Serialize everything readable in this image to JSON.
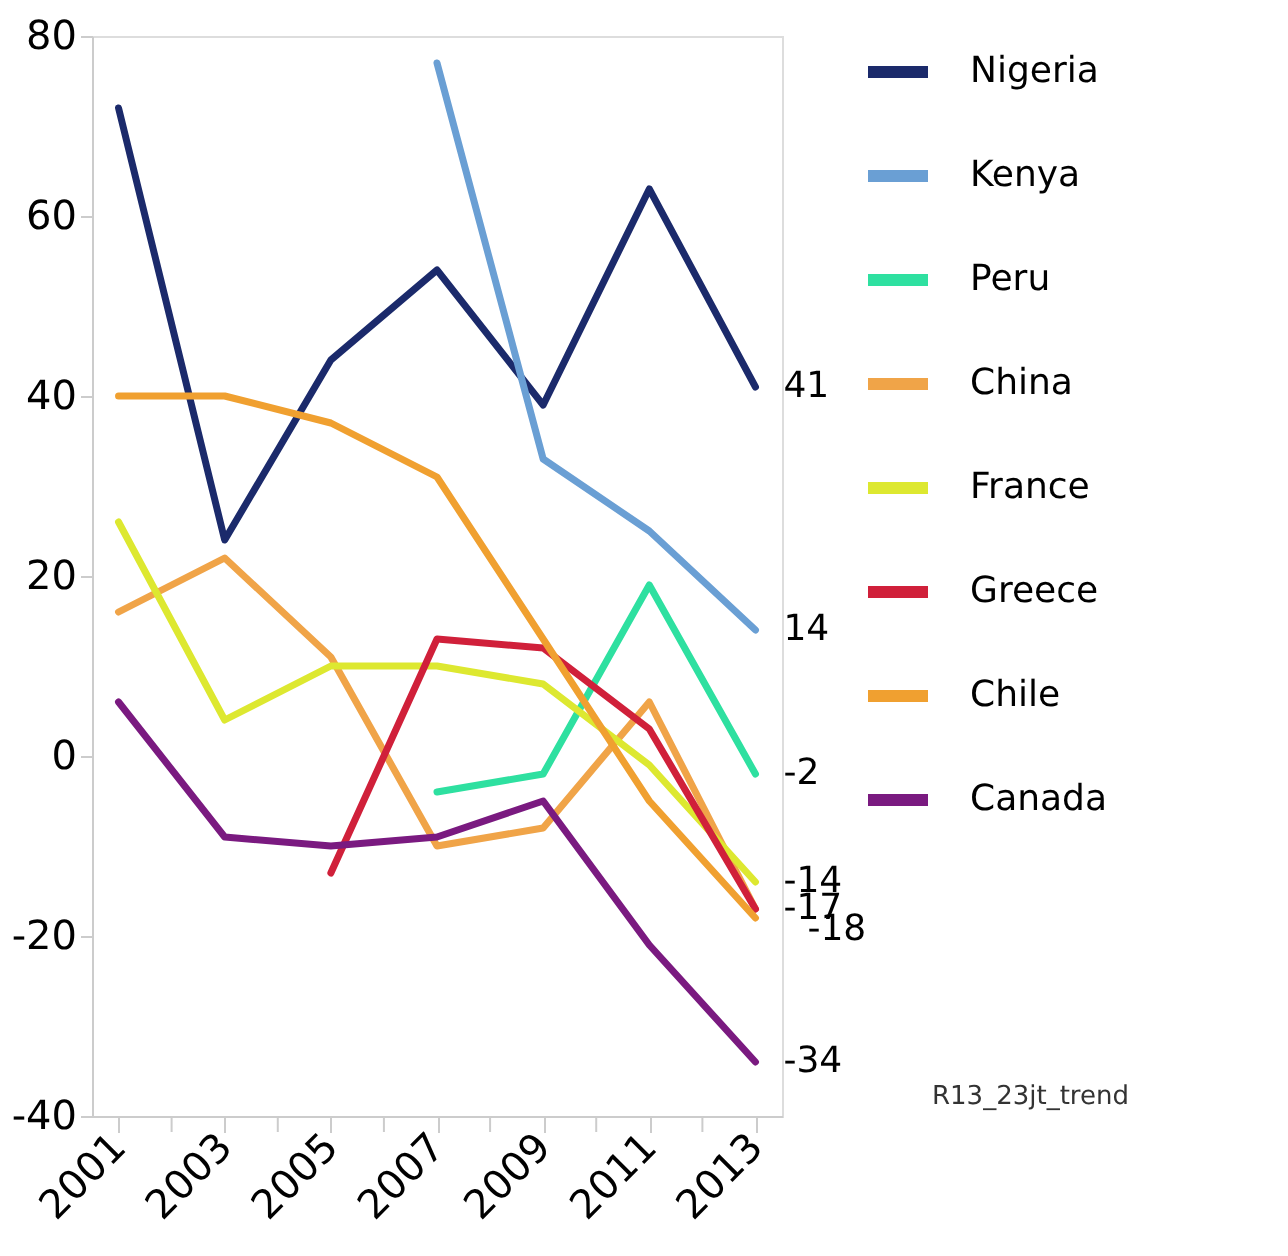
{
  "chart_data": {
    "type": "line",
    "x": [
      2001,
      2003,
      2005,
      2007,
      2009,
      2011,
      2013
    ],
    "xlim": [
      2000.5,
      2013.5
    ],
    "xticks": [
      2001,
      {
        "value": 2002,
        "label": null
      },
      2003,
      {
        "value": 2004,
        "label": null
      },
      2005,
      {
        "value": 2006,
        "label": null
      },
      2007,
      {
        "value": 2008,
        "label": null
      },
      2009,
      {
        "value": 2010,
        "label": null
      },
      2011,
      {
        "value": 2012,
        "label": null
      },
      2013
    ],
    "ylim": [
      -40,
      80
    ],
    "yticks": [
      -40,
      -20,
      0,
      20,
      40,
      60,
      80
    ],
    "grid": false,
    "legend": "right",
    "marker": "none",
    "line_style": "solid",
    "series": [
      {
        "name": "Nigeria",
        "color": "#1b2a6b",
        "values": [
          72,
          24,
          44,
          54,
          39,
          63,
          41
        ],
        "value_labels": [
          null,
          null,
          null,
          null,
          null,
          null,
          "41"
        ]
      },
      {
        "name": "Kenya",
        "color": "#6a9fd4",
        "values": [
          null,
          null,
          null,
          77,
          33,
          25,
          14
        ],
        "value_labels": [
          null,
          null,
          null,
          null,
          null,
          null,
          "14"
        ]
      },
      {
        "name": "Peru",
        "color": "#2ee0a0",
        "values": [
          null,
          null,
          null,
          -4,
          -2,
          19,
          -2
        ],
        "value_labels": [
          null,
          null,
          null,
          null,
          null,
          null,
          "-2"
        ]
      },
      {
        "name": "China",
        "color": "#f0a448",
        "values": [
          16,
          22,
          11,
          -10,
          -8,
          6,
          -17
        ]
      },
      {
        "name": "France",
        "color": "#dde830",
        "values": [
          26,
          4,
          10,
          10,
          8,
          -1,
          -14
        ],
        "value_labels": [
          null,
          null,
          null,
          null,
          null,
          null,
          "-14"
        ]
      },
      {
        "name": "Greece",
        "color": "#d0203a",
        "values": [
          null,
          null,
          -13,
          13,
          12,
          3,
          -17
        ],
        "value_labels": [
          null,
          null,
          null,
          null,
          null,
          null,
          "-17"
        ]
      },
      {
        "name": "Chile",
        "color": "#f0a030",
        "values": [
          40,
          40,
          37,
          31,
          13,
          -5,
          -18
        ],
        "value_labels": [
          null,
          null,
          null,
          null,
          null,
          null,
          "-18"
        ]
      },
      {
        "name": "Canada",
        "color": "#7a1a80",
        "values": [
          6,
          -9,
          -10,
          -9,
          -5,
          -21,
          -34
        ],
        "value_labels": [
          null,
          null,
          null,
          null,
          null,
          null,
          "-34"
        ]
      }
    ],
    "annotations": [
      "R13_23jt_trend"
    ]
  }
}
